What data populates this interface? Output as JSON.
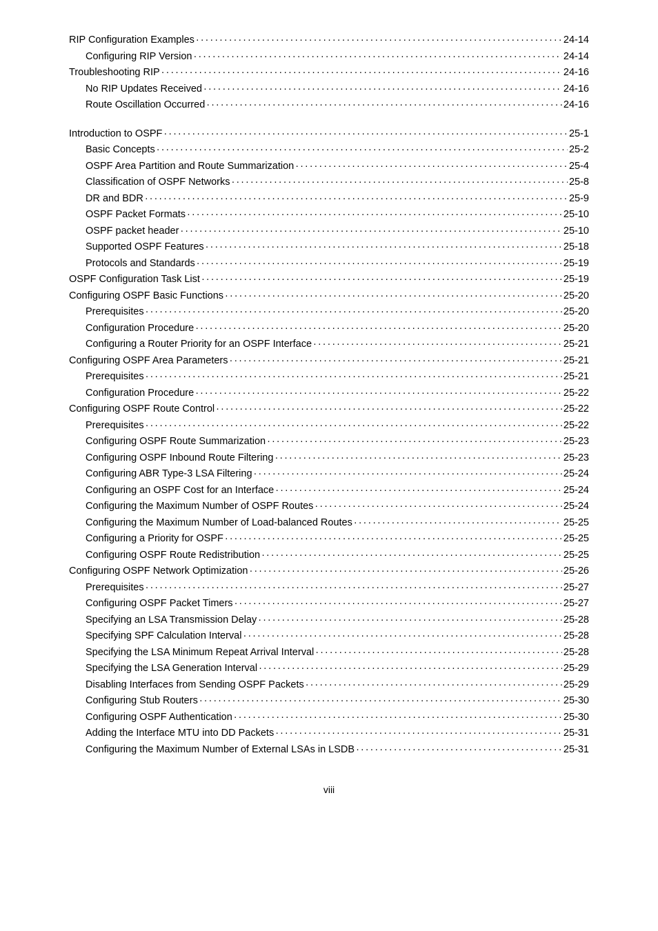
{
  "typography": {
    "font_family": "Arial, sans-serif",
    "font_size_pt": 11,
    "line_color": "#000000",
    "background_color": "#ffffff"
  },
  "toc": [
    {
      "label": "RIP Configuration Examples",
      "page": "24-14",
      "indent": 0
    },
    {
      "label": "Configuring RIP Version",
      "page": "24-14",
      "indent": 1
    },
    {
      "label": "Troubleshooting RIP",
      "page": "24-16",
      "indent": 0
    },
    {
      "label": "No RIP Updates Received",
      "page": "24-16",
      "indent": 1
    },
    {
      "label": "Route Oscillation Occurred",
      "page": "24-16",
      "indent": 1
    },
    {
      "spacer": true
    },
    {
      "label": "Introduction to OSPF",
      "page": "25-1",
      "indent": 0
    },
    {
      "label": "Basic Concepts",
      "page": "25-2",
      "indent": 1
    },
    {
      "label": "OSPF Area Partition and Route Summarization",
      "page": "25-4",
      "indent": 1
    },
    {
      "label": "Classification of OSPF Networks",
      "page": "25-8",
      "indent": 1
    },
    {
      "label": "DR and BDR",
      "page": "25-9",
      "indent": 1
    },
    {
      "label": "OSPF Packet Formats",
      "page": "25-10",
      "indent": 1
    },
    {
      "label": "OSPF packet header",
      "page": "25-10",
      "indent": 1
    },
    {
      "label": "Supported OSPF Features",
      "page": "25-18",
      "indent": 1
    },
    {
      "label": "Protocols and Standards",
      "page": "25-19",
      "indent": 1
    },
    {
      "label": "OSPF Configuration Task List",
      "page": "25-19",
      "indent": 0
    },
    {
      "label": "Configuring OSPF Basic Functions",
      "page": "25-20",
      "indent": 0
    },
    {
      "label": "Prerequisites",
      "page": "25-20",
      "indent": 1
    },
    {
      "label": "Configuration Procedure",
      "page": "25-20",
      "indent": 1
    },
    {
      "label": "Configuring a Router Priority for an OSPF Interface",
      "page": "25-21",
      "indent": 1
    },
    {
      "label": "Configuring OSPF Area Parameters",
      "page": "25-21",
      "indent": 0
    },
    {
      "label": "Prerequisites",
      "page": "25-21",
      "indent": 1
    },
    {
      "label": "Configuration Procedure",
      "page": "25-22",
      "indent": 1
    },
    {
      "label": "Configuring OSPF Route Control",
      "page": "25-22",
      "indent": 0
    },
    {
      "label": "Prerequisites",
      "page": "25-22",
      "indent": 1
    },
    {
      "label": "Configuring OSPF Route Summarization",
      "page": "25-23",
      "indent": 1
    },
    {
      "label": "Configuring OSPF Inbound Route Filtering",
      "page": "25-23",
      "indent": 1
    },
    {
      "label": "Configuring ABR Type-3 LSA Filtering",
      "page": "25-24",
      "indent": 1
    },
    {
      "label": "Configuring an OSPF Cost for an Interface",
      "page": "25-24",
      "indent": 1
    },
    {
      "label": "Configuring the Maximum Number of OSPF Routes",
      "page": "25-24",
      "indent": 1
    },
    {
      "label": "Configuring the Maximum Number of Load-balanced Routes",
      "page": "25-25",
      "indent": 1
    },
    {
      "label": "Configuring a Priority for OSPF",
      "page": "25-25",
      "indent": 1
    },
    {
      "label": "Configuring OSPF Route Redistribution",
      "page": "25-25",
      "indent": 1
    },
    {
      "label": "Configuring OSPF Network Optimization",
      "page": "25-26",
      "indent": 0
    },
    {
      "label": "Prerequisites",
      "page": "25-27",
      "indent": 1
    },
    {
      "label": "Configuring OSPF Packet Timers",
      "page": "25-27",
      "indent": 1
    },
    {
      "label": "Specifying an LSA Transmission Delay",
      "page": "25-28",
      "indent": 1
    },
    {
      "label": "Specifying SPF Calculation Interval",
      "page": "25-28",
      "indent": 1
    },
    {
      "label": "Specifying the LSA Minimum Repeat Arrival Interval",
      "page": "25-28",
      "indent": 1
    },
    {
      "label": "Specifying the LSA Generation Interval",
      "page": "25-29",
      "indent": 1
    },
    {
      "label": "Disabling Interfaces from Sending OSPF Packets",
      "page": "25-29",
      "indent": 1
    },
    {
      "label": "Configuring Stub Routers",
      "page": "25-30",
      "indent": 1
    },
    {
      "label": "Configuring OSPF Authentication",
      "page": "25-30",
      "indent": 1
    },
    {
      "label": "Adding the Interface MTU into DD Packets",
      "page": "25-31",
      "indent": 1
    },
    {
      "label": "Configuring the Maximum Number of External LSAs in LSDB",
      "page": "25-31",
      "indent": 1
    }
  ],
  "footer": "viii"
}
